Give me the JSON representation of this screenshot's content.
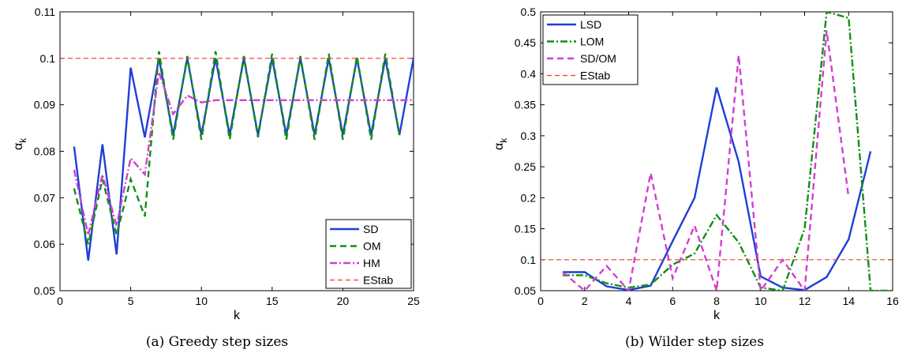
{
  "chart_data": [
    {
      "type": "line",
      "caption": "(a)  Greedy step sizes",
      "xlabel": "k",
      "ylabel": "α",
      "ylabel_sub": "k",
      "xlim": [
        0,
        25
      ],
      "ylim": [
        0.05,
        0.11
      ],
      "xticks": [
        "0",
        "5",
        "10",
        "15",
        "20",
        "25"
      ],
      "yticks": [
        "0.05",
        "0.06",
        "0.07",
        "0.08",
        "0.09",
        "0.1",
        "0.11"
      ],
      "legend_position": "bottom-right",
      "series": [
        {
          "name": "SD",
          "color": "#1f3fd6",
          "dash": "solid",
          "x": [
            1,
            2,
            3,
            4,
            5,
            6,
            7,
            8,
            9,
            10,
            11,
            12,
            13,
            14,
            15,
            16,
            17,
            18,
            19,
            20,
            21,
            22,
            23,
            24,
            25
          ],
          "y": [
            0.081,
            0.0565,
            0.0815,
            0.0578,
            0.098,
            0.083,
            0.1,
            0.0835,
            0.1,
            0.0835,
            0.1,
            0.0835,
            0.1,
            0.0835,
            0.1,
            0.0835,
            0.1,
            0.0835,
            0.1,
            0.0835,
            0.1,
            0.0835,
            0.1,
            0.0835,
            0.1
          ]
        },
        {
          "name": "OM",
          "color": "#119011",
          "dash": "dashed",
          "x": [
            1,
            2,
            3,
            4,
            5,
            6,
            7,
            8,
            9,
            10,
            11,
            12,
            13,
            14,
            15,
            16,
            17,
            18,
            19,
            20,
            21,
            22,
            23,
            24
          ],
          "y": [
            0.072,
            0.06,
            0.074,
            0.062,
            0.074,
            0.066,
            0.1015,
            0.0825,
            0.1005,
            0.0825,
            0.1015,
            0.0825,
            0.1005,
            0.083,
            0.101,
            0.0825,
            0.1005,
            0.0825,
            0.101,
            0.0825,
            0.1005,
            0.0825,
            0.101,
            0.0835
          ]
        },
        {
          "name": "HM",
          "color": "#d040d0",
          "dash": "dashdot",
          "x": [
            1,
            2,
            3,
            4,
            5,
            6,
            7,
            8,
            9,
            10,
            11,
            12,
            13,
            14,
            15,
            16,
            17,
            18,
            19,
            20,
            21,
            22,
            23,
            24,
            25
          ],
          "y": [
            0.076,
            0.062,
            0.075,
            0.064,
            0.0785,
            0.075,
            0.097,
            0.088,
            0.092,
            0.0905,
            0.091,
            0.091,
            0.091,
            0.091,
            0.091,
            0.091,
            0.091,
            0.091,
            0.091,
            0.091,
            0.091,
            0.091,
            0.091,
            0.091,
            0.091
          ]
        },
        {
          "name": "EStab",
          "color": "#e8402a",
          "dash": "finedash",
          "x": [
            0,
            25
          ],
          "y": [
            0.1,
            0.1
          ]
        }
      ]
    },
    {
      "type": "line",
      "caption": "(b)  Wilder step sizes",
      "xlabel": "k",
      "ylabel": "α",
      "ylabel_sub": "k",
      "xlim": [
        0,
        16
      ],
      "ylim": [
        0.05,
        0.5
      ],
      "xticks": [
        "0",
        "2",
        "4",
        "6",
        "8",
        "10",
        "12",
        "14",
        "16"
      ],
      "yticks": [
        "0.05",
        "0.1",
        "0.15",
        "0.2",
        "0.25",
        "0.3",
        "0.35",
        "0.4",
        "0.45",
        "0.5"
      ],
      "legend_position": "top-left",
      "series": [
        {
          "name": "LSD",
          "color": "#1f3fd6",
          "dash": "solid",
          "x": [
            1,
            2,
            3,
            4,
            5,
            6,
            7,
            8,
            9,
            10,
            11,
            12,
            13,
            14,
            15
          ],
          "y": [
            0.08,
            0.08,
            0.057,
            0.051,
            0.058,
            0.13,
            0.2,
            0.378,
            0.258,
            0.073,
            0.055,
            0.051,
            0.072,
            0.133,
            0.275
          ]
        },
        {
          "name": "LOM",
          "color": "#119011",
          "dash": "dashdot",
          "x": [
            1,
            2,
            3,
            4,
            5,
            6,
            7,
            8,
            9,
            10,
            11,
            12,
            13,
            14,
            15,
            16
          ],
          "y": [
            0.075,
            0.075,
            0.062,
            0.055,
            0.06,
            0.092,
            0.11,
            0.172,
            0.128,
            0.055,
            0.05,
            0.15,
            0.5,
            0.49,
            0.05,
            0.05
          ]
        },
        {
          "name": "SD/OM",
          "color": "#d040d0",
          "dash": "dashed",
          "x": [
            1,
            2,
            3,
            4,
            5,
            6,
            7,
            8,
            9,
            10,
            11,
            12,
            13,
            14
          ],
          "y": [
            0.08,
            0.05,
            0.09,
            0.05,
            0.24,
            0.07,
            0.155,
            0.05,
            0.43,
            0.05,
            0.1,
            0.05,
            0.47,
            0.2
          ]
        },
        {
          "name": "EStab",
          "color": "#e8402a",
          "dash": "finedash",
          "x": [
            0,
            16
          ],
          "y": [
            0.1,
            0.1
          ]
        }
      ]
    }
  ]
}
